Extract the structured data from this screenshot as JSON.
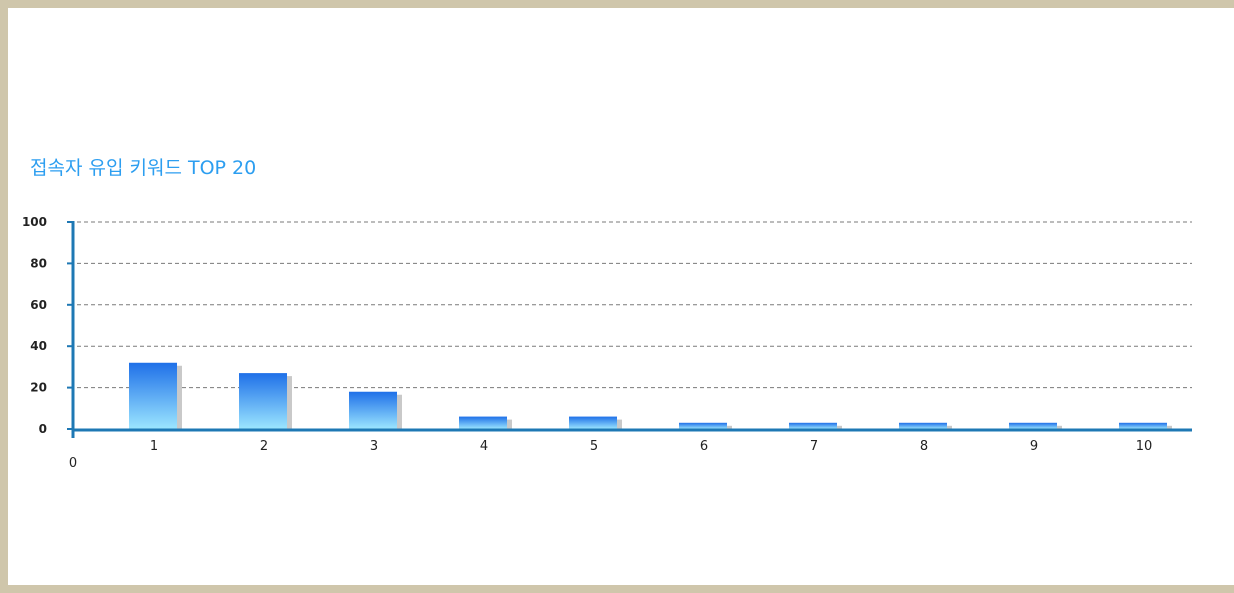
{
  "chart_data": {
    "type": "bar",
    "title": "접속자 유입 키워드 TOP 20",
    "categories": [
      "1",
      "2",
      "3",
      "4",
      "5",
      "6",
      "7",
      "8",
      "9",
      "10"
    ],
    "values": [
      32,
      27,
      18,
      6,
      6,
      3,
      3,
      3,
      3,
      3
    ],
    "ylim": [
      0,
      100
    ],
    "yticks": [
      0,
      20,
      40,
      60,
      80,
      100
    ],
    "x_origin_label": "0",
    "grid": true,
    "colors": {
      "bar_top": "#1f70e8",
      "bar_bottom": "#9ce6ff",
      "bar_shadow": "#c9c9c9",
      "axis": "#1e78b4",
      "grid": "#7a7a7a",
      "title": "#2c9ef0",
      "border": "#cfc6ab"
    }
  }
}
